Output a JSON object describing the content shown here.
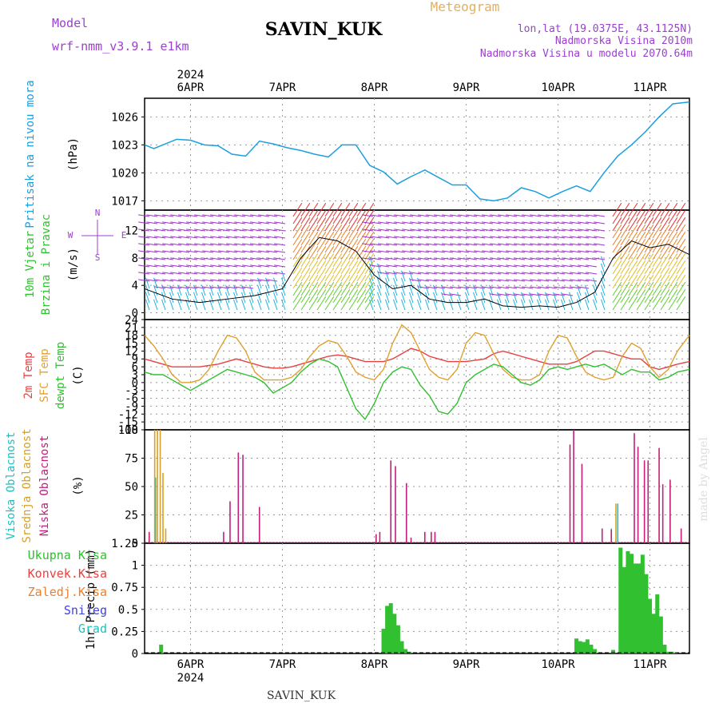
{
  "header": {
    "model_label": "Model",
    "model_name": "wrf-nmm_v3.9.1  e1km",
    "station": "SAVIN_KUK",
    "meteogram": "Meteogram",
    "lonlat": "lon,lat (19.0375E, 43.1125N)",
    "elev": "Nadmorska Visina 2010m",
    "elev_model": "Nadmorska Visina u modelu 2070.64m",
    "footer_station": "SAVIN_KUK",
    "credit": "made by Angel"
  },
  "colors": {
    "pressure": "#1a9fe0",
    "t2m": "#e84040",
    "sfc": "#e0a030",
    "dewpt": "#30c030",
    "cloud_high": "#20c0c0",
    "cloud_mid": "#d8a020",
    "cloud_low": "#c0207a",
    "precip": "#30c030",
    "purple": "#9b40d0"
  },
  "chart_data": [
    {
      "type": "line",
      "panel": "pressure",
      "ylabel_lines": [
        "Pritisak na nivou mora",
        "(hPa)"
      ],
      "yticks": [
        1017,
        1020,
        1023,
        1026
      ],
      "ylim": [
        1016,
        1028
      ],
      "xlim": [
        0,
        5.93
      ],
      "x_tick_labels": [
        "6APR",
        "7APR",
        "8APR",
        "9APR",
        "10APR",
        "11APR"
      ],
      "year": "2024",
      "grid": true,
      "x": [
        0,
        0.1,
        0.2,
        0.35,
        0.5,
        0.65,
        0.8,
        0.95,
        1.1,
        1.25,
        1.4,
        1.55,
        1.7,
        1.85,
        2.0,
        2.15,
        2.3,
        2.45,
        2.6,
        2.75,
        2.9,
        3.05,
        3.2,
        3.35,
        3.5,
        3.65,
        3.8,
        3.95,
        4.1,
        4.25,
        4.4,
        4.55,
        4.7,
        4.85,
        5.0,
        5.15,
        5.3,
        5.45,
        5.6,
        5.75,
        5.93
      ],
      "y": [
        1023.0,
        1022.6,
        1023.0,
        1023.6,
        1023.5,
        1023.0,
        1022.9,
        1022.0,
        1021.8,
        1023.4,
        1023.1,
        1022.7,
        1022.4,
        1022.0,
        1021.7,
        1023.0,
        1023.0,
        1020.8,
        1020.1,
        1018.8,
        1019.6,
        1020.3,
        1019.5,
        1018.7,
        1018.7,
        1017.2,
        1017.0,
        1017.3,
        1018.4,
        1018.0,
        1017.3,
        1018.0,
        1018.6,
        1018.0,
        1020.0,
        1021.8,
        1023.0,
        1024.4,
        1026.0,
        1027.4,
        1027.6
      ],
      "series": [
        {
          "name": "Pritisak na nivou mora",
          "color": "#1a9fe0"
        }
      ]
    },
    {
      "type": "scatter",
      "panel": "wind",
      "ylabel_lines": [
        "10m Vjetar",
        "Brzina i Pravac",
        "(m/s)"
      ],
      "compass": [
        "N",
        "W",
        "E",
        "S"
      ],
      "yticks": [
        0,
        4,
        8,
        12
      ],
      "ylim": [
        -1,
        15
      ],
      "grid": true,
      "speed_x": [
        0,
        0.3,
        0.6,
        0.9,
        1.2,
        1.5,
        1.7,
        1.9,
        2.1,
        2.3,
        2.5,
        2.7,
        2.9,
        3.1,
        3.3,
        3.5,
        3.7,
        3.9,
        4.1,
        4.3,
        4.5,
        4.7,
        4.9,
        5.1,
        5.3,
        5.5,
        5.7,
        5.93
      ],
      "speed_y": [
        3.5,
        2.0,
        1.5,
        2.0,
        2.5,
        3.5,
        8.0,
        11.0,
        10.5,
        9.0,
        5.5,
        3.5,
        4.0,
        2.0,
        1.5,
        1.5,
        2.0,
        1.0,
        0.8,
        1.0,
        0.8,
        1.5,
        3.0,
        8.0,
        10.5,
        9.5,
        10.0,
        8.5
      ],
      "series": [
        {
          "name": "10m Vjetar",
          "color": "#000000"
        }
      ]
    },
    {
      "type": "line",
      "panel": "temperature",
      "ylabel_lines": [
        "2m Temp",
        "SFC Temp",
        "dewpt Temp",
        "(C)"
      ],
      "yticks": [
        -18,
        -15,
        -12,
        -9,
        -6,
        -3,
        0,
        3,
        6,
        9,
        12,
        15,
        18,
        21,
        24
      ],
      "ylim": [
        -18,
        24
      ],
      "grid": true,
      "x": [
        0,
        0.1,
        0.2,
        0.3,
        0.4,
        0.5,
        0.6,
        0.7,
        0.8,
        0.9,
        1.0,
        1.1,
        1.2,
        1.3,
        1.4,
        1.5,
        1.6,
        1.7,
        1.8,
        1.9,
        2.0,
        2.1,
        2.2,
        2.3,
        2.4,
        2.5,
        2.6,
        2.7,
        2.8,
        2.9,
        3.0,
        3.1,
        3.2,
        3.3,
        3.4,
        3.5,
        3.6,
        3.7,
        3.8,
        3.9,
        4.0,
        4.1,
        4.2,
        4.3,
        4.4,
        4.5,
        4.6,
        4.7,
        4.8,
        4.9,
        5.0,
        5.1,
        5.2,
        5.3,
        5.4,
        5.5,
        5.6,
        5.7,
        5.8,
        5.93
      ],
      "series": [
        {
          "name": "2m Temp",
          "color": "#e84040",
          "values": [
            9,
            8,
            7,
            6,
            6,
            6,
            6,
            6.5,
            7,
            8,
            9,
            8,
            7,
            6,
            5.5,
            5.5,
            6,
            7,
            8,
            9,
            10,
            10.5,
            10,
            9,
            8,
            8,
            8,
            9,
            11,
            13,
            12,
            10,
            9,
            8,
            8,
            8,
            8.5,
            9,
            11,
            12,
            11,
            10,
            9,
            8,
            7,
            7,
            7,
            8,
            10,
            12,
            12,
            11,
            10,
            9,
            9,
            6,
            5,
            6,
            7,
            8
          ]
        },
        {
          "name": "SFC Temp",
          "color": "#e0a030",
          "values": [
            18,
            14,
            9,
            3,
            0,
            0,
            1,
            5,
            12,
            18,
            17,
            12,
            4,
            1,
            1,
            1,
            2,
            5,
            10,
            14,
            16,
            15,
            10,
            4,
            2,
            1,
            5,
            15,
            22,
            19,
            12,
            5,
            2,
            1,
            5,
            15,
            19,
            18,
            11,
            5,
            2,
            1,
            1,
            3,
            12,
            18,
            17,
            10,
            4,
            2,
            1,
            2,
            10,
            15,
            13,
            6,
            2,
            5,
            12,
            18
          ]
        },
        {
          "name": "dewpt Temp",
          "color": "#30c030",
          "values": [
            4,
            3,
            3,
            1,
            -1,
            -3,
            -1,
            1,
            3,
            5,
            4,
            3,
            2,
            0,
            -4,
            -2,
            0,
            4,
            7,
            9,
            8,
            6,
            -2,
            -10,
            -14,
            -8,
            0,
            4,
            6,
            5,
            -1,
            -5,
            -11,
            -12,
            -8,
            0,
            3,
            5,
            7,
            6,
            3,
            0,
            -1,
            1,
            5,
            6,
            5,
            6,
            7,
            6,
            7,
            5,
            3,
            5,
            4,
            4,
            1,
            2,
            4,
            5
          ]
        }
      ]
    },
    {
      "type": "bar",
      "panel": "cloud",
      "ylabel_lines": [
        "Visoka Oblacnost",
        "Srednja Oblacnost",
        "Niska Oblacnost",
        "(%)"
      ],
      "yticks": [
        0,
        25,
        50,
        75,
        100
      ],
      "ylim": [
        0,
        100
      ],
      "grid": true,
      "series": [
        {
          "name": "Visoka Oblacnost",
          "color": "#20c0c0",
          "x": [
            0.12,
            0.14,
            5.08,
            5.15
          ],
          "values": [
            58,
            1,
            13,
            35
          ]
        },
        {
          "name": "Srednja Oblacnost",
          "color": "#d8a020",
          "x": [
            0.11,
            0.14,
            0.17,
            0.2,
            0.23,
            5.13
          ],
          "values": [
            100,
            100,
            100,
            62,
            13,
            35
          ]
        },
        {
          "name": "Niska Oblacnost",
          "color": "#c0207a",
          "x": [
            0.05,
            0.86,
            0.93,
            1.02,
            1.07,
            1.25,
            2.52,
            2.56,
            2.68,
            2.73,
            2.85,
            2.9,
            3.05,
            3.12,
            3.16,
            4.63,
            4.67,
            4.76,
            4.98,
            5.08,
            5.33,
            5.37,
            5.44,
            5.48,
            5.6,
            5.64,
            5.72,
            5.84
          ],
          "values": [
            10,
            10,
            37,
            80,
            78,
            32,
            8,
            10,
            73,
            68,
            53,
            5,
            10,
            10,
            10,
            87,
            100,
            70,
            13,
            12,
            97,
            85,
            73,
            73,
            84,
            52,
            56,
            13
          ]
        }
      ]
    },
    {
      "type": "bar",
      "panel": "precip",
      "ylabel_lines": [
        "1hr Precip (mm)"
      ],
      "legend": [
        "Ukupna Kisa",
        "Konvek.Kisa",
        "Zaledj.Kisa",
        "Snijeg",
        "Grad"
      ],
      "legend_colors": [
        "#30c030",
        "#e84040",
        "#e88030",
        "#4040e0",
        "#20c0c0"
      ],
      "yticks": [
        0,
        0.25,
        0.5,
        0.75,
        1,
        1.25
      ],
      "ylim": [
        0,
        1.25
      ],
      "grid": true,
      "x": [
        0.18,
        2.6,
        2.64,
        2.68,
        2.72,
        2.76,
        2.8,
        2.84,
        2.88,
        4.7,
        4.74,
        4.78,
        4.82,
        4.86,
        4.9,
        5.1,
        5.18,
        5.22,
        5.26,
        5.3,
        5.34,
        5.38,
        5.42,
        5.46,
        5.5,
        5.54,
        5.58,
        5.62,
        5.66,
        5.7,
        5.74,
        5.78
      ],
      "values": [
        0.1,
        0.28,
        0.54,
        0.57,
        0.45,
        0.32,
        0.14,
        0.05,
        0.02,
        0.17,
        0.14,
        0.13,
        0.16,
        0.1,
        0.05,
        0.04,
        1.2,
        0.98,
        1.16,
        1.13,
        1.02,
        1.02,
        1.12,
        0.9,
        0.62,
        0.45,
        0.67,
        0.42,
        0.1,
        0.02,
        0.02,
        0.01
      ],
      "series": [
        {
          "name": "Ukupna Kisa",
          "color": "#30c030"
        }
      ]
    }
  ]
}
